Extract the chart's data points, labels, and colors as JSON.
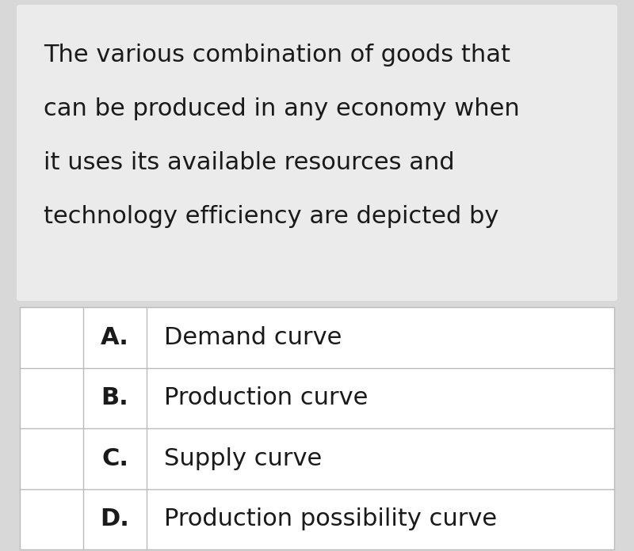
{
  "question_text_lines": [
    "The various combination of goods that",
    "can be produced in any economy when",
    "it uses its available resources and",
    "technology efficiency are depicted by"
  ],
  "options": [
    {
      "label": "A.",
      "text": "Demand curve"
    },
    {
      "label": "B.",
      "text": "Production curve"
    },
    {
      "label": "C.",
      "text": "Supply curve"
    },
    {
      "label": "D.",
      "text": "Production possibility curve"
    }
  ],
  "bg_color": "#d8d8d8",
  "question_bg": "#ebebeb",
  "table_bg": "#ffffff",
  "table_border_color": "#bbbbbb",
  "text_color": "#1a1a1a",
  "question_fontsize": 22,
  "option_label_fontsize": 22,
  "option_text_fontsize": 22
}
